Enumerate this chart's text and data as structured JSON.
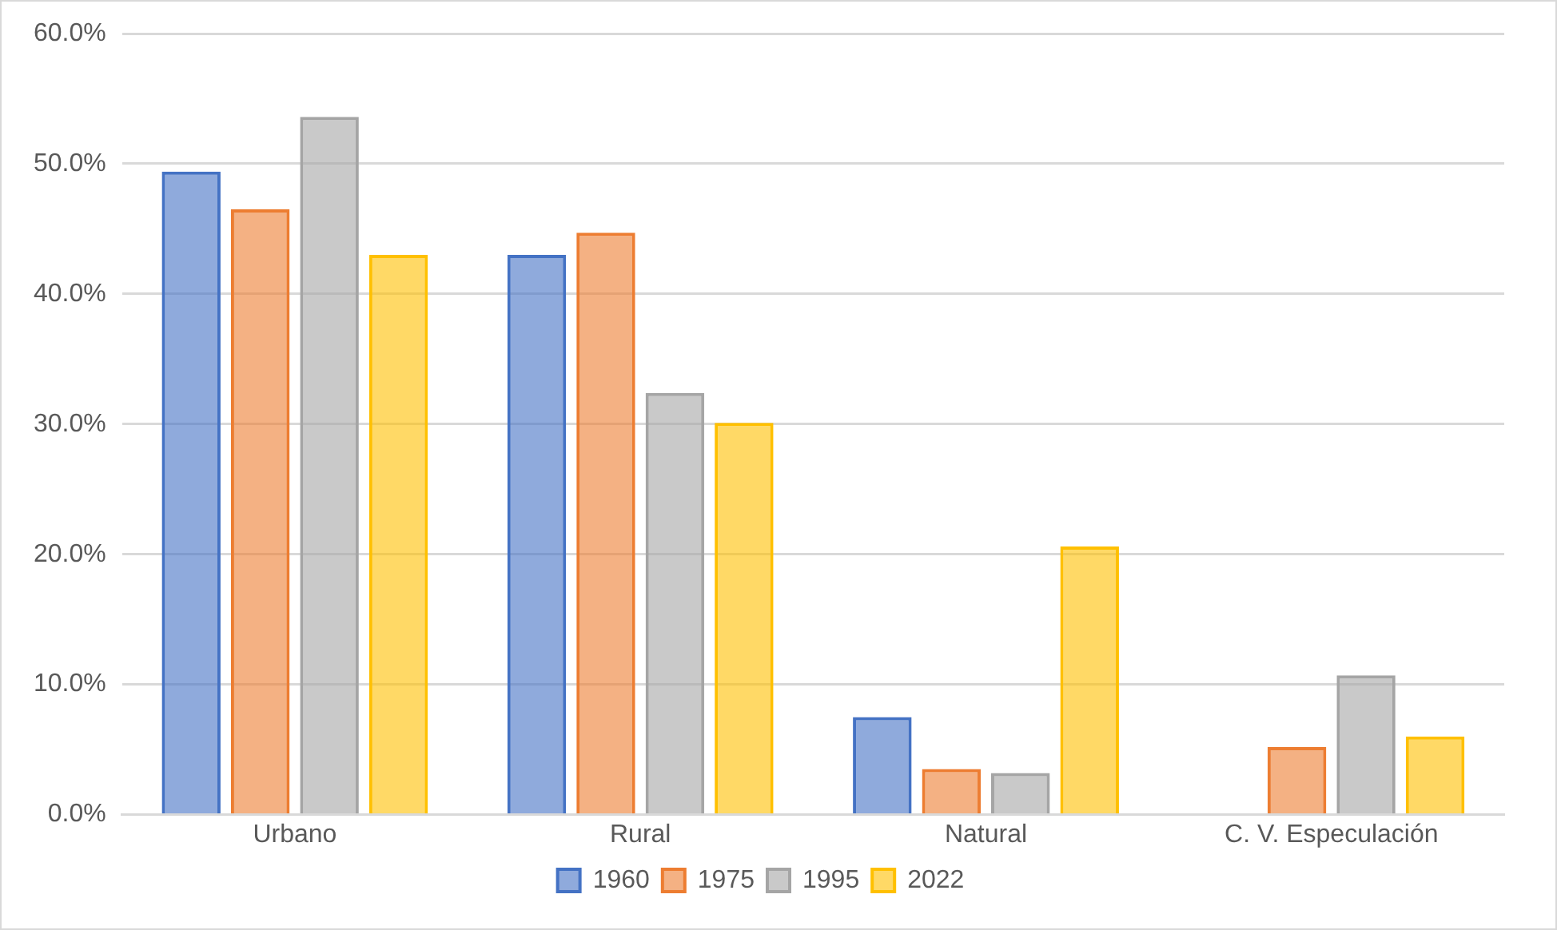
{
  "chart_data": {
    "type": "bar",
    "categories": [
      "Urbano",
      "Rural",
      "Natural",
      "C. V. Especulación"
    ],
    "series": [
      {
        "name": "1960",
        "color": "#4472c4",
        "values": [
          49.4,
          43.0,
          7.5,
          null
        ]
      },
      {
        "name": "1975",
        "color": "#ed7d31",
        "values": [
          46.5,
          44.7,
          3.5,
          5.2
        ]
      },
      {
        "name": "1995",
        "color": "#a5a5a5",
        "values": [
          53.6,
          32.4,
          3.2,
          10.7
        ]
      },
      {
        "name": "2022",
        "color": "#ffc000",
        "values": [
          43.0,
          30.1,
          20.6,
          6.0
        ]
      }
    ],
    "ylim": [
      0,
      60
    ],
    "yticks": [
      {
        "value": 0,
        "label": "0.0%"
      },
      {
        "value": 10,
        "label": "10.0%"
      },
      {
        "value": 20,
        "label": "20.0%"
      },
      {
        "value": 30,
        "label": "30.0%"
      },
      {
        "value": 40,
        "label": "40.0%"
      },
      {
        "value": 50,
        "label": "50.0%"
      },
      {
        "value": 60,
        "label": "60.0%"
      }
    ],
    "grid": "y",
    "legend": "bottom"
  }
}
